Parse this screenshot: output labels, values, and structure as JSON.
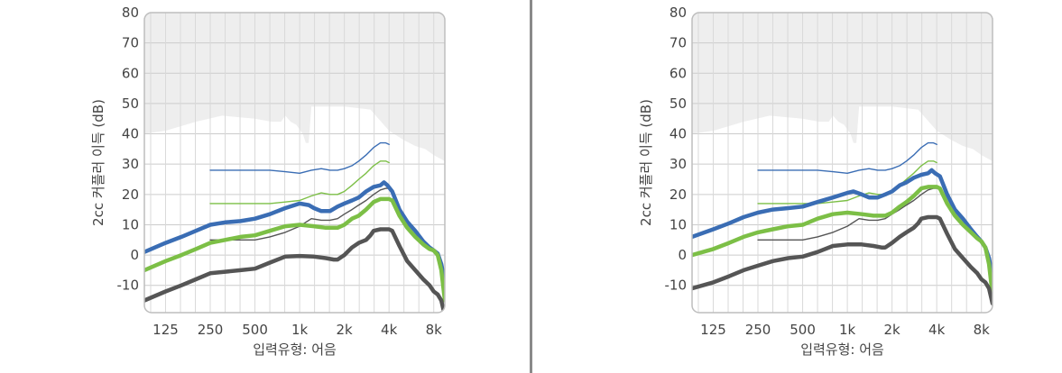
{
  "chart_data": [
    {
      "type": "line",
      "xlabel": "입력유형: 어음",
      "ylabel": "2cc 커플러 이득 (dB)",
      "xscale": "log",
      "x_tick_labels": [
        "125",
        "250",
        "500",
        "1k",
        "2k",
        "4k",
        "8k"
      ],
      "x_tick_values": [
        125,
        250,
        500,
        1000,
        2000,
        4000,
        8000
      ],
      "xlim": [
        90,
        9500
      ],
      "y_ticks": [
        80,
        70,
        60,
        50,
        40,
        30,
        20,
        10,
        0,
        -10
      ],
      "ylim": [
        -19,
        80
      ],
      "grid": true,
      "legend": "none",
      "colors": {
        "blue": "#3a6db4",
        "green": "#7cbf46",
        "dark": "#555555",
        "max_region": "#eeeeee"
      },
      "max_output_region": {
        "x": [
          90,
          125,
          200,
          300,
          500,
          650,
          750,
          800,
          870,
          950,
          1050,
          1100,
          1150,
          1200,
          2000,
          3000,
          4000,
          5000,
          6000,
          7000,
          8000,
          9500
        ],
        "y": [
          40,
          41,
          44,
          46,
          45,
          44,
          44,
          46,
          44,
          43,
          40,
          37,
          37,
          49,
          49,
          48,
          41,
          38,
          36,
          35,
          33,
          31
        ]
      },
      "series": [
        {
          "color": "blue",
          "style": "thick",
          "x": [
            90,
            125,
            160,
            200,
            250,
            315,
            400,
            500,
            630,
            800,
            1000,
            1150,
            1250,
            1400,
            1600,
            1800,
            2000,
            2250,
            2500,
            2800,
            3150,
            3500,
            3700,
            3900,
            4200,
            4700,
            5300,
            6000,
            6800,
            7500,
            8000,
            8500,
            9000,
            9500
          ],
          "y": [
            1,
            4,
            6,
            8,
            10,
            10.8,
            11.2,
            12,
            13.5,
            15.5,
            17,
            16.5,
            15.5,
            14.5,
            14.5,
            16,
            17,
            18,
            19,
            21,
            22.5,
            23,
            24,
            23,
            21,
            15,
            11,
            8,
            4.5,
            2.5,
            1.5,
            0.5,
            -3,
            -9
          ]
        },
        {
          "color": "green",
          "style": "thick",
          "x": [
            90,
            125,
            160,
            200,
            250,
            315,
            400,
            500,
            630,
            800,
            1000,
            1250,
            1500,
            1800,
            2000,
            2250,
            2500,
            2800,
            3150,
            3500,
            3700,
            4000,
            4200,
            4700,
            5300,
            6000,
            6800,
            7500,
            8000,
            8500,
            9000,
            9500
          ],
          "y": [
            -5,
            -2,
            0,
            2,
            4,
            5,
            6,
            6.5,
            8,
            9.5,
            10,
            9.5,
            9,
            9,
            10,
            12,
            13,
            15,
            17.5,
            18.5,
            18.5,
            18.5,
            18,
            13,
            9,
            6,
            3.5,
            2,
            1.5,
            0,
            -5,
            -15
          ]
        },
        {
          "color": "dark",
          "style": "thick",
          "x": [
            90,
            125,
            160,
            200,
            250,
            315,
            400,
            500,
            630,
            800,
            1000,
            1250,
            1500,
            1700,
            1800,
            2000,
            2250,
            2500,
            2800,
            3000,
            3150,
            3500,
            3700,
            4000,
            4200,
            4700,
            5300,
            6000,
            6800,
            7500,
            8000,
            8500,
            9000,
            9500
          ],
          "y": [
            -15,
            -12,
            -10,
            -8,
            -6,
            -5.5,
            -5,
            -4.5,
            -2.5,
            -0.5,
            -0.3,
            -0.5,
            -1,
            -1.5,
            -1.5,
            0,
            2.5,
            4,
            5,
            6.5,
            8,
            8.5,
            8.5,
            8.5,
            8,
            3,
            -2,
            -5,
            -8,
            -10,
            -12,
            -13,
            -15,
            -20
          ]
        },
        {
          "color": "blue",
          "style": "thin",
          "x": [
            250,
            400,
            500,
            630,
            800,
            1000,
            1200,
            1400,
            1600,
            1800,
            2000,
            2250,
            2500,
            2800,
            3150,
            3500,
            3800,
            4000
          ],
          "y": [
            28,
            28,
            28,
            28,
            27.5,
            27,
            28,
            28.5,
            28,
            28,
            28.5,
            29.5,
            31,
            33,
            35.5,
            37,
            37,
            36.5
          ]
        },
        {
          "color": "green",
          "style": "thin",
          "x": [
            250,
            400,
            500,
            630,
            800,
            1000,
            1200,
            1400,
            1600,
            1800,
            2000,
            2250,
            2500,
            2800,
            3150,
            3500,
            3800,
            4000
          ],
          "y": [
            17,
            17,
            17,
            17,
            17.5,
            18,
            19.5,
            20.5,
            20,
            20,
            21,
            23,
            25,
            27,
            29.5,
            31,
            31,
            30.5
          ]
        },
        {
          "color": "dark",
          "style": "thin",
          "x": [
            250,
            400,
            500,
            630,
            800,
            1000,
            1200,
            1400,
            1600,
            1800,
            2000,
            2250,
            2500,
            2800,
            3150,
            3500,
            3800,
            4000
          ],
          "y": [
            5,
            5,
            5,
            6,
            7.5,
            9.5,
            12,
            11.5,
            11.5,
            12,
            13.5,
            15,
            16.5,
            18,
            20,
            21.5,
            22,
            22
          ]
        }
      ]
    },
    {
      "type": "line",
      "xlabel": "입력유형: 어음",
      "ylabel": "2cc 커플러 이득 (dB)",
      "xscale": "log",
      "x_tick_labels": [
        "125",
        "250",
        "500",
        "1k",
        "2k",
        "4k",
        "8k"
      ],
      "x_tick_values": [
        125,
        250,
        500,
        1000,
        2000,
        4000,
        8000
      ],
      "xlim": [
        90,
        9500
      ],
      "y_ticks": [
        80,
        70,
        60,
        50,
        40,
        30,
        20,
        10,
        0,
        -10
      ],
      "ylim": [
        -19,
        80
      ],
      "grid": true,
      "legend": "none",
      "colors": {
        "blue": "#3a6db4",
        "green": "#7cbf46",
        "dark": "#555555",
        "max_region": "#eeeeee"
      },
      "max_output_region": {
        "x": [
          90,
          125,
          200,
          300,
          500,
          650,
          750,
          800,
          870,
          950,
          1050,
          1100,
          1150,
          1200,
          2000,
          3000,
          4000,
          5000,
          6000,
          7000,
          8000,
          9500
        ],
        "y": [
          40,
          41,
          44,
          46,
          45,
          44,
          44,
          46,
          44,
          43,
          40,
          37,
          37,
          49,
          49,
          48,
          41,
          38,
          36,
          35,
          33,
          31
        ]
      },
      "series": [
        {
          "color": "blue",
          "style": "thick",
          "x": [
            90,
            125,
            160,
            200,
            250,
            315,
            400,
            500,
            630,
            800,
            1000,
            1100,
            1250,
            1400,
            1600,
            1800,
            2000,
            2250,
            2500,
            2800,
            3150,
            3500,
            3700,
            3900,
            4200,
            4700,
            5300,
            6000,
            6800,
            7500,
            8000,
            8500,
            9000,
            9500
          ],
          "y": [
            6,
            8.5,
            10.5,
            12.5,
            14,
            15,
            15.5,
            16,
            17.5,
            19,
            20.5,
            21,
            20,
            19,
            19,
            20,
            21,
            23,
            24,
            25.5,
            26.5,
            27,
            28,
            27,
            26,
            20,
            15,
            12,
            8.5,
            6,
            4.5,
            2.5,
            -1,
            -7
          ]
        },
        {
          "color": "green",
          "style": "thick",
          "x": [
            90,
            125,
            160,
            200,
            250,
            315,
            400,
            500,
            630,
            800,
            1000,
            1250,
            1500,
            1800,
            2000,
            2250,
            2500,
            2800,
            3150,
            3500,
            3700,
            4000,
            4200,
            4700,
            5300,
            6000,
            6800,
            7500,
            8000,
            8500,
            9000,
            9500
          ],
          "y": [
            0,
            2,
            4,
            6,
            7.5,
            8.5,
            9.5,
            10,
            12,
            13.5,
            14,
            13.5,
            13,
            13,
            14,
            16,
            17.5,
            19.5,
            22,
            22.5,
            22.5,
            22.5,
            22,
            17,
            13,
            10,
            7.5,
            5.5,
            4.5,
            2.5,
            -3,
            -13
          ]
        },
        {
          "color": "dark",
          "style": "thick",
          "x": [
            90,
            125,
            160,
            200,
            250,
            315,
            400,
            500,
            630,
            800,
            1000,
            1250,
            1500,
            1700,
            1800,
            2000,
            2250,
            2500,
            2800,
            3000,
            3150,
            3500,
            3700,
            4000,
            4200,
            4700,
            5300,
            6000,
            6800,
            7500,
            8000,
            8500,
            9000,
            9500
          ],
          "y": [
            -11,
            -9,
            -7,
            -5,
            -3.5,
            -2,
            -1,
            -0.5,
            1,
            3,
            3.5,
            3.5,
            3,
            2.5,
            2.5,
            4,
            6,
            7.5,
            9,
            10.5,
            12,
            12.5,
            12.5,
            12.5,
            12,
            7,
            2,
            -1,
            -4,
            -6,
            -8,
            -9,
            -11,
            -16
          ]
        },
        {
          "color": "blue",
          "style": "thin",
          "x": [
            250,
            400,
            500,
            630,
            800,
            1000,
            1200,
            1400,
            1600,
            1800,
            2000,
            2250,
            2500,
            2800,
            3150,
            3500,
            3800,
            4000
          ],
          "y": [
            28,
            28,
            28,
            28,
            27.5,
            27,
            28,
            28.5,
            28,
            28,
            28.5,
            29.5,
            31,
            33,
            35.5,
            37,
            37,
            36.5
          ]
        },
        {
          "color": "green",
          "style": "thin",
          "x": [
            250,
            400,
            500,
            630,
            800,
            1000,
            1200,
            1400,
            1600,
            1800,
            2000,
            2250,
            2500,
            2800,
            3150,
            3500,
            3800,
            4000
          ],
          "y": [
            17,
            17,
            17,
            17,
            17.5,
            18,
            19.5,
            20.5,
            20,
            20,
            21,
            23,
            25,
            27,
            29.5,
            31,
            31,
            30.5
          ]
        },
        {
          "color": "dark",
          "style": "thin",
          "x": [
            250,
            400,
            500,
            630,
            800,
            1000,
            1200,
            1400,
            1600,
            1800,
            2000,
            2250,
            2500,
            2800,
            3150,
            3500,
            3800,
            4000
          ],
          "y": [
            5,
            5,
            5,
            6,
            7.5,
            9.5,
            12,
            11.5,
            11.5,
            12,
            13.5,
            15,
            16.5,
            18,
            20,
            21.5,
            22,
            22
          ]
        }
      ]
    }
  ]
}
